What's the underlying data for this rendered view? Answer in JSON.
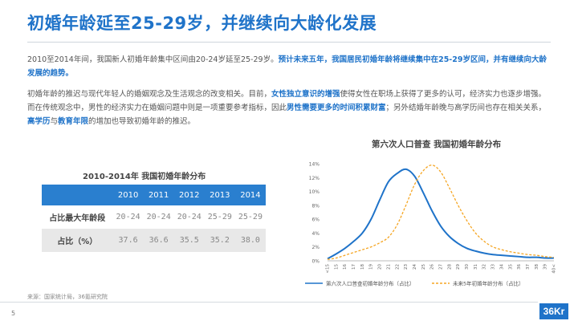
{
  "slide": {
    "title": "初婚年龄延至25-29岁，并继续向大龄化发展",
    "page_number": "5",
    "source": "来源：国家统计局，36氪研究院",
    "logo_text": "36Kr"
  },
  "paragraph1": {
    "normal": "2010至2014年间，我国新人初婚年龄集中区间由20-24岁延至25-29岁。",
    "highlight": "预计未来五年，我国居民初婚年龄将继续集中在25-29岁区间，并有继续向大龄发展的趋势。"
  },
  "paragraph2": {
    "s1": "初婚年龄的推迟与现代年轻人的婚姻观念及生活观念的改变相关。目前，",
    "h1": "女性独立意识的增强",
    "s2": "使得女性在职场上获得了更多的认可，经济实力也逐步增强。而在传统观念中，男性的经济实力在婚姻问题中则是一项重要参考指标，因此",
    "h2": "男性需要更多的时间积累财富",
    "s3": "；另外结婚年龄晚与高学历间也存在相关关系，",
    "h3": "高学历",
    "s4": "与",
    "h4": "教育年限",
    "s5": "的增加也导致初婚年龄的推迟。"
  },
  "table": {
    "title": "2010-2014年 我国初婚年龄分布",
    "years": [
      "2010",
      "2011",
      "2012",
      "2013",
      "2014"
    ],
    "rows": [
      {
        "label": "占比最大年龄段",
        "values": [
          "20-24",
          "20-24",
          "20-24",
          "25-29",
          "25-29"
        ]
      },
      {
        "label": "占比（%）",
        "values": [
          "37.6",
          "36.6",
          "35.5",
          "35.2",
          "38.0"
        ]
      }
    ]
  },
  "chart_data": {
    "type": "line",
    "title": "第六次人口普查 我国初婚年龄分布",
    "x": [
      "<15",
      "15",
      "16",
      "17",
      "18",
      "19",
      "20",
      "21",
      "22",
      "23",
      "24",
      "25",
      "26",
      "27",
      "28",
      "29",
      "30",
      "31",
      "32",
      "33",
      "34",
      "35",
      "36",
      "37",
      "38",
      "39",
      "40<"
    ],
    "ylim": [
      0,
      14
    ],
    "y_ticks": [
      "0%",
      "2%",
      "4%",
      "6%",
      "8%",
      "10%",
      "12%",
      "14%"
    ],
    "series": [
      {
        "name": "第六次人口普查初婚年龄分布（占比）",
        "color": "#1f73c9",
        "style": "solid",
        "values": [
          0.3,
          1.0,
          1.8,
          2.8,
          4.0,
          6.0,
          8.8,
          11.4,
          12.6,
          13.2,
          12.2,
          9.8,
          7.2,
          5.0,
          3.5,
          2.5,
          1.8,
          1.4,
          1.1,
          0.9,
          0.8,
          0.7,
          0.6,
          0.5,
          0.5,
          0.4,
          0.4
        ]
      },
      {
        "name": "未来5年初婚年龄分布（占比）",
        "color": "#f5a623",
        "style": "dashed",
        "values": [
          0.2,
          0.4,
          0.8,
          1.2,
          1.6,
          2.0,
          2.6,
          3.4,
          5.2,
          8.0,
          11.0,
          13.0,
          13.8,
          12.8,
          10.5,
          8.0,
          5.8,
          4.0,
          2.8,
          2.0,
          1.6,
          1.3,
          1.1,
          0.9,
          0.8,
          0.6,
          0.5
        ]
      }
    ],
    "legend_position": "bottom",
    "grid": false
  }
}
